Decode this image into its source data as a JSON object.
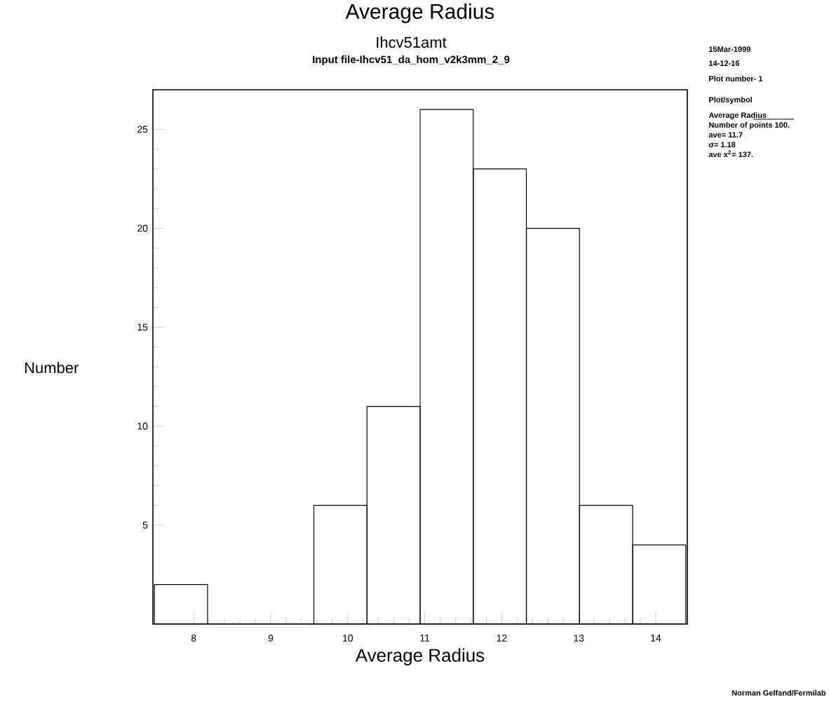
{
  "chart_data": {
    "type": "histogram",
    "title": "Average Radius",
    "subtitle": "Ihcv51amt",
    "xlabel": "Average Radius",
    "ylabel": "Number",
    "bins": [
      7.49,
      8.18,
      8.87,
      9.56,
      10.25,
      10.94,
      11.63,
      12.32,
      13.01,
      13.7,
      14.39
    ],
    "values": [
      2,
      0,
      0,
      6,
      11,
      26,
      23,
      20,
      6,
      4
    ],
    "color": "#000000",
    "xlim": [
      7.47,
      14.41
    ],
    "xticks": [
      8,
      9,
      10,
      11,
      12,
      13,
      14
    ],
    "ylim": [
      0,
      27
    ],
    "yticks": [
      5,
      10,
      15,
      20,
      25
    ],
    "grid": false,
    "annotations": [
      "Input file-Ihcv51_da_hom_v2k3mm_2_9",
      "15Mar-1999",
      "14-12-16",
      "Plot number- 1",
      "Plot/symbol",
      "Average Radius",
      "Number of points   100.",
      "ave=   11.7",
      "σ=   1.18",
      "ave x$^{2}$=   137.",
      "Norman Gelfand/Fermilab"
    ]
  }
}
